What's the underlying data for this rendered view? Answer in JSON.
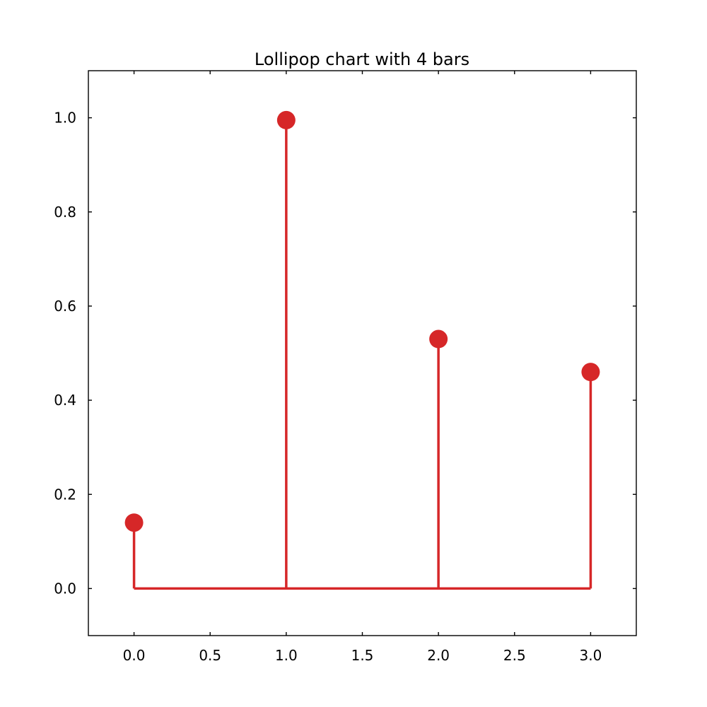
{
  "chart_data": {
    "type": "lollipop",
    "title": "Lollipop chart with 4 bars",
    "xlabel": "",
    "ylabel": "",
    "x": [
      0,
      1,
      2,
      3
    ],
    "values": [
      0.14,
      0.995,
      0.53,
      0.46
    ],
    "baseline": 0,
    "xlim": [
      -0.3,
      3.3
    ],
    "ylim": [
      -0.1,
      1.1
    ],
    "xticks": [
      0.0,
      0.5,
      1.0,
      1.5,
      2.0,
      2.5,
      3.0
    ],
    "xtick_labels": [
      "0.0",
      "0.5",
      "1.0",
      "1.5",
      "2.0",
      "2.5",
      "3.0"
    ],
    "yticks": [
      0.0,
      0.2,
      0.4,
      0.6,
      0.8,
      1.0
    ],
    "ytick_labels": [
      "0.0",
      "0.2",
      "0.4",
      "0.6",
      "0.8",
      "1.0"
    ],
    "grid": false,
    "color": "#d62728"
  }
}
